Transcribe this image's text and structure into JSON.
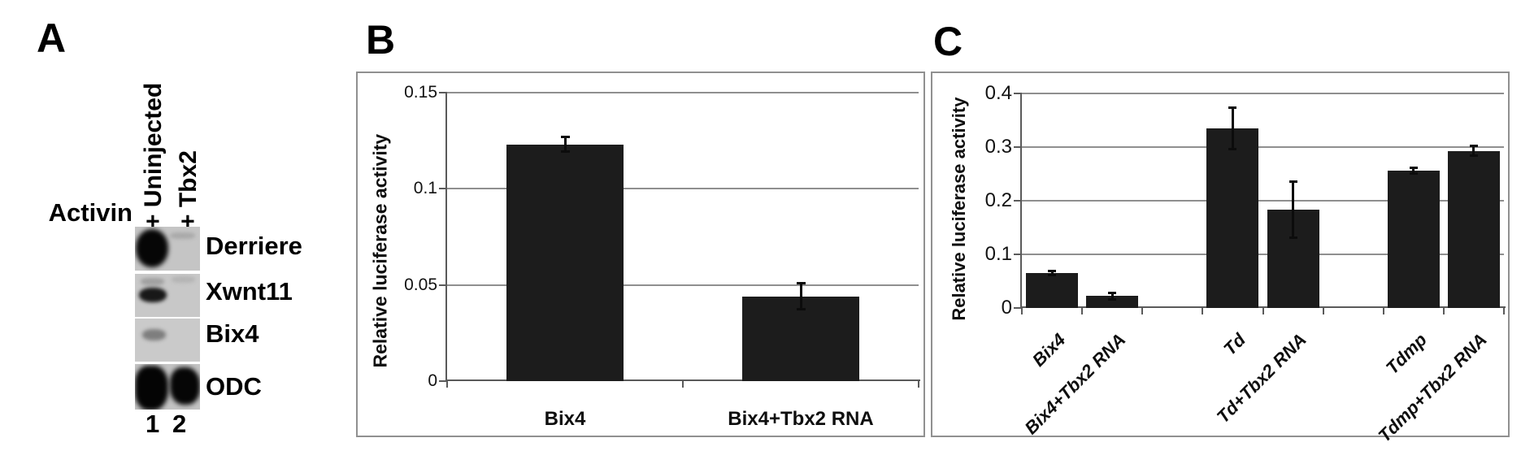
{
  "figure": {
    "panel_labels": {
      "a": "A",
      "b": "B",
      "c": "C"
    }
  },
  "panel_a": {
    "condition_label": "Activin",
    "lane_headers": [
      "+ Uninjected",
      "+ Tbx2"
    ],
    "lane_numbers": [
      "1",
      "2"
    ],
    "rows": [
      {
        "gene": "Derriere",
        "lane1_band": "strong",
        "lane2_band": "faint"
      },
      {
        "gene": "Xwnt11",
        "lane1_band": "medium",
        "lane2_band": "faint"
      },
      {
        "gene": "Bix4",
        "lane1_band": "faint",
        "lane2_band": "none"
      },
      {
        "gene": "ODC",
        "lane1_band": "strong",
        "lane2_band": "strong"
      }
    ]
  },
  "chart_data": [
    {
      "type": "bar",
      "panel": "B",
      "title": "",
      "ylabel": "Relative luciferase activity",
      "xlabel": "",
      "ylim": [
        0,
        0.15
      ],
      "grid": true,
      "legend": false,
      "slots": 2,
      "bar_color": "#1c1c1c",
      "yticks": [
        {
          "value": 0.15,
          "label": "0.15"
        },
        {
          "value": 0.1,
          "label": "0.1"
        },
        {
          "value": 0.05,
          "label": "0.05"
        },
        {
          "value": 0,
          "label": "0"
        }
      ],
      "categories": [
        "Bix4",
        "Bix4+Tbx2 RNA"
      ],
      "bars": [
        {
          "slot": 0,
          "label": "Bix4",
          "value": 0.123,
          "error": 0.004
        },
        {
          "slot": 1,
          "label": "Bix4+Tbx2 RNA",
          "value": 0.044,
          "error": 0.007
        }
      ]
    },
    {
      "type": "bar",
      "panel": "C",
      "title": "",
      "ylabel": "Relative luciferase activity",
      "xlabel": "",
      "ylim": [
        0,
        0.4
      ],
      "grid": true,
      "legend": false,
      "slots": 8,
      "bar_color": "#1c1c1c",
      "yticks": [
        {
          "value": 0.4,
          "label": "0.4"
        },
        {
          "value": 0.3,
          "label": "0.3"
        },
        {
          "value": 0.2,
          "label": "0.2"
        },
        {
          "value": 0.1,
          "label": "0.1"
        },
        {
          "value": 0,
          "label": "0"
        }
      ],
      "categories": [
        "Bix4",
        "Bix4+Tbx2 RNA",
        "Td",
        "Td+Tbx2 RNA",
        "Tdmp",
        "Tdmp+Tbx2 RNA"
      ],
      "bars": [
        {
          "slot": 0,
          "label": "Bix4",
          "value": 0.065,
          "error": 0.004
        },
        {
          "slot": 1,
          "label": "Bix4+Tbx2 RNA",
          "value": 0.022,
          "error": 0.007
        },
        {
          "slot": 3,
          "label": "Td",
          "value": 0.335,
          "error": 0.04
        },
        {
          "slot": 4,
          "label": "Td+Tbx2 RNA",
          "value": 0.183,
          "error": 0.053
        },
        {
          "slot": 6,
          "label": "Tdmp",
          "value": 0.256,
          "error": 0.006
        },
        {
          "slot": 7,
          "label": "Tdmp+Tbx2 RNA",
          "value": 0.293,
          "error": 0.01
        }
      ]
    }
  ],
  "colors": {
    "bar": "#1c1c1c",
    "gridline": "#8f8f8f",
    "axis": "#5a5a5a",
    "panel_border": "#909090",
    "gel_background": "#c6c6c6",
    "text": "#000000"
  }
}
